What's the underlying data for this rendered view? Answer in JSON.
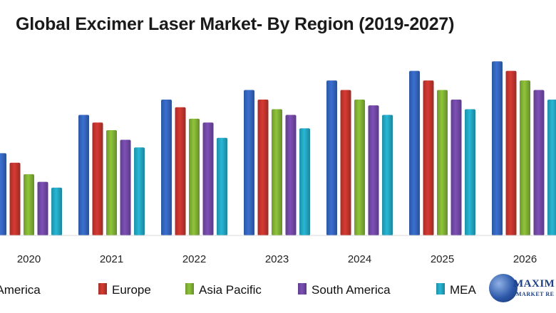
{
  "chart_data": {
    "type": "bar",
    "title": "Global Excimer Laser Market- By Region (2019-2027)",
    "xlabel": "",
    "ylabel": "",
    "categories": [
      "2020",
      "2021",
      "2022",
      "2023",
      "2024",
      "2025",
      "2026"
    ],
    "series": [
      {
        "name": "North America",
        "color": "#3a6fd0",
        "values": [
          43,
          63,
          71,
          76,
          81,
          86,
          91
        ]
      },
      {
        "name": "Europe",
        "color": "#d63b33",
        "values": [
          38,
          59,
          67,
          71,
          76,
          81,
          86
        ]
      },
      {
        "name": "Asia Pacific",
        "color": "#8fc43a",
        "values": [
          32,
          55,
          61,
          66,
          71,
          76,
          81
        ]
      },
      {
        "name": "South America",
        "color": "#7d50b6",
        "values": [
          28,
          50,
          59,
          63,
          68,
          71,
          76
        ]
      },
      {
        "name": "MEA",
        "color": "#27b8d6",
        "values": [
          25,
          46,
          51,
          56,
          63,
          66,
          71
        ]
      }
    ],
    "ylim": [
      0,
      100
    ],
    "grid": false,
    "legend": "bottom"
  },
  "logo": {
    "text_line1": "MAXIM",
    "text_line2": "MARKET RE"
  }
}
